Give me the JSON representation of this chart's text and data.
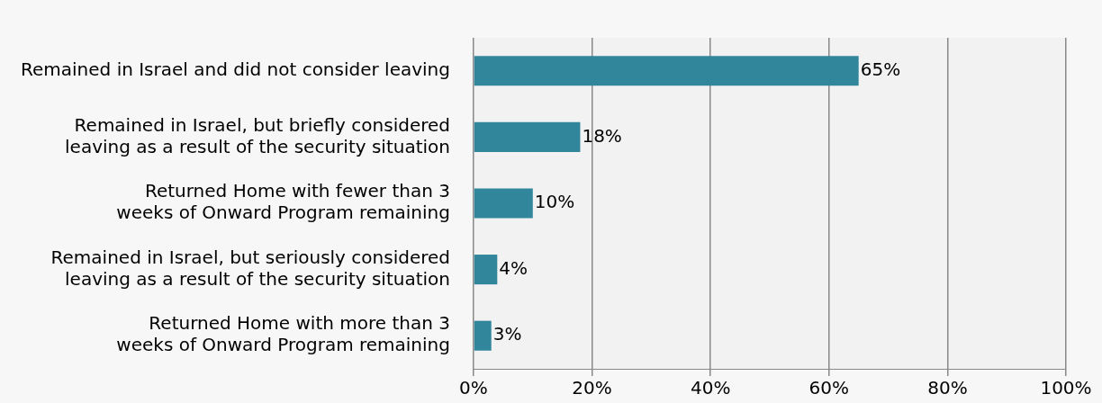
{
  "chart_data": {
    "type": "bar",
    "orientation": "horizontal",
    "categories": [
      "Remained in Israel and did not consider leaving",
      "Remained in Israel, but briefly considered leaving as a result of the security situation",
      "Returned Home with fewer than 3 weeks of Onward Program remaining",
      "Remained in Israel, but seriously considered leaving as a result of the security situation",
      "Returned Home with more than 3 weeks of Onward Program remaining"
    ],
    "values": [
      65,
      18,
      10,
      4,
      3
    ],
    "value_labels": [
      "65%",
      "18%",
      "10%",
      "4%",
      "3%"
    ],
    "color": "#31869b",
    "xlim": [
      0,
      100
    ],
    "xticks": [
      {
        "value": 0,
        "label": "0%"
      },
      {
        "value": 20,
        "label": "20%"
      },
      {
        "value": 40,
        "label": "40%"
      },
      {
        "value": 60,
        "label": "60%"
      },
      {
        "value": 80,
        "label": "80%"
      },
      {
        "value": 100,
        "label": "100%"
      }
    ],
    "grid": "x",
    "legend": false
  }
}
